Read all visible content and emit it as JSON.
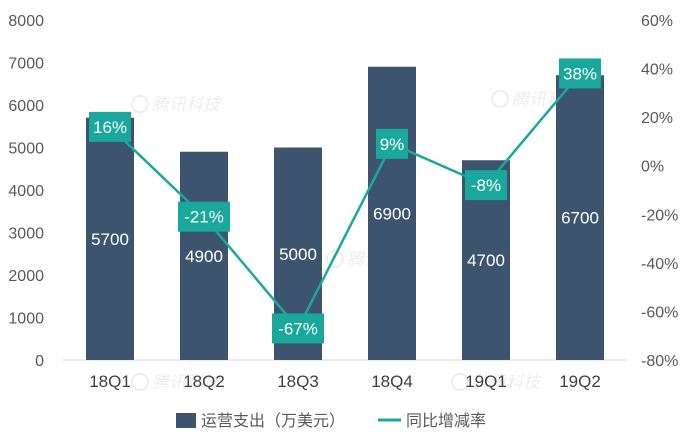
{
  "chart_data": {
    "type": "bar+line",
    "categories": [
      "18Q1",
      "18Q2",
      "18Q3",
      "18Q4",
      "19Q1",
      "19Q2"
    ],
    "series": [
      {
        "name": "运营支出（万美元）",
        "type": "bar",
        "axis": "left",
        "values": [
          5700,
          4900,
          5000,
          6900,
          4700,
          6700
        ],
        "labels": [
          "5700",
          "4900",
          "5000",
          "6900",
          "4700",
          "6700"
        ]
      },
      {
        "name": "同比增减率",
        "type": "line",
        "axis": "right",
        "values": [
          16,
          -21,
          -67,
          9,
          -8,
          38
        ],
        "labels": [
          "16%",
          "-21%",
          "-67%",
          "9%",
          "-8%",
          "38%"
        ]
      }
    ],
    "left_axis": {
      "min": 0,
      "max": 8000,
      "ticks": [
        "0",
        "1000",
        "2000",
        "3000",
        "4000",
        "5000",
        "6000",
        "7000",
        "8000"
      ]
    },
    "right_axis": {
      "min": -80,
      "max": 60,
      "ticks": [
        "-80%",
        "-60%",
        "-40%",
        "-20%",
        "0%",
        "20%",
        "40%",
        "60%"
      ]
    },
    "legend": [
      "运营支出（万美元）",
      "同比增减率"
    ],
    "legend_position": "bottom",
    "watermark": "腾讯科技",
    "colors": {
      "bar": "#3d546e",
      "line": "#1aa89c",
      "label_box": "#1aa89c",
      "axis_text": "#595959",
      "axis_line": "#d9d9d9"
    }
  }
}
